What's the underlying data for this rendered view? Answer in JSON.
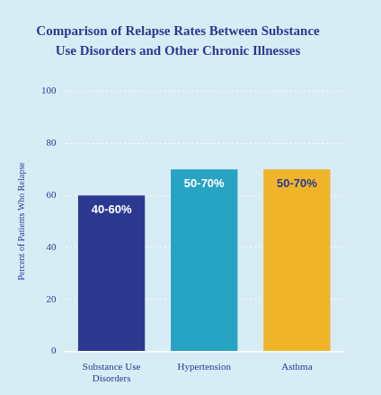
{
  "chart_data": {
    "type": "bar",
    "title": "Comparison of Relapse Rates Between Substance Use Disorders and Other Chronic Illnesses",
    "y_label": "Percent of Patients Who Relapse",
    "categories": [
      "Substance Use Disorders",
      "Hypertension",
      "Asthma"
    ],
    "values": [
      60,
      70,
      70
    ],
    "value_labels": [
      "40-60%",
      "50-70%",
      "50-70%"
    ],
    "colors": [
      "#2b3990",
      "#27a3c4",
      "#f0b429"
    ],
    "ylim": [
      0,
      100
    ],
    "yticks": [
      0,
      20,
      40,
      60,
      80,
      100
    ],
    "grid": true,
    "data_labels": true
  }
}
